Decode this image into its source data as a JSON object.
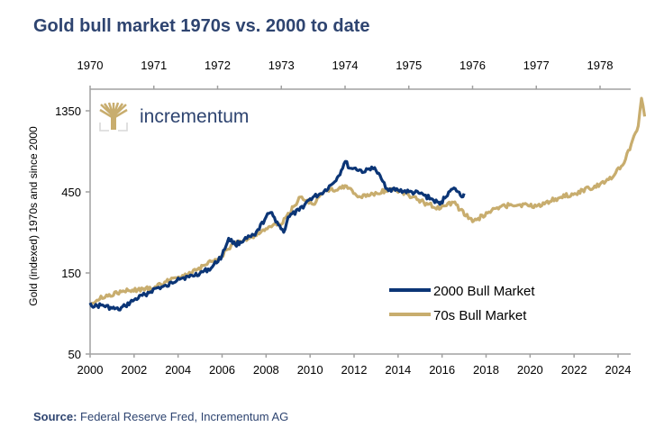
{
  "title": "Gold bull market 1970s vs. 2000 to date",
  "source": {
    "label": "Source:",
    "text": "Federal Reserve Fred, Incrementum AG"
  },
  "logo": {
    "name": "incrementum",
    "icon": "tree-icon"
  },
  "colors": {
    "series_2000": "#0b3576",
    "series_70s": "#c8ad6e",
    "axis": "#a0a0a0",
    "title": "#2e4470"
  },
  "chart_data": {
    "type": "line",
    "title": "Gold bull market 1970s vs. 2000 to date",
    "ylabel": "Gold (indexed) 1970s and since 2000",
    "yscale": "log",
    "ylim": [
      50,
      1600
    ],
    "yticks": [
      50,
      150,
      450,
      1350
    ],
    "ytick_labels": [
      "50",
      "150",
      "450",
      "1350"
    ],
    "x_bottom": {
      "label": "",
      "range": [
        2000,
        2024.6
      ],
      "ticks": [
        2000,
        2002,
        2004,
        2006,
        2008,
        2010,
        2012,
        2014,
        2016,
        2018,
        2020,
        2022,
        2024
      ],
      "tick_labels": [
        "2000",
        "2002",
        "2004",
        "2006",
        "2008",
        "2010",
        "2012",
        "2014",
        "2016",
        "2018",
        "2020",
        "2022",
        "2024"
      ]
    },
    "x_top": {
      "label": "",
      "range": [
        1970,
        1978.7
      ],
      "ticks": [
        1970,
        1971,
        1972,
        1973,
        1974,
        1975,
        1976,
        1977,
        1978
      ],
      "tick_labels": [
        "1970",
        "1971",
        "1972",
        "1973",
        "1974",
        "1975",
        "1976",
        "1977",
        "1978"
      ]
    },
    "legend": {
      "placement": "bottom-right",
      "entries": [
        "2000 Bull Market",
        "70s Bull Market"
      ]
    },
    "grid": false,
    "series": [
      {
        "name": "2000 Bull Market",
        "axis": "bottom",
        "x": [
          2000.0,
          2000.2,
          2000.5,
          2001.0,
          2001.3,
          2001.6,
          2002.0,
          2002.5,
          2003.0,
          2003.5,
          2004.0,
          2004.5,
          2005.0,
          2005.5,
          2006.0,
          2006.3,
          2006.6,
          2007.0,
          2007.5,
          2008.0,
          2008.2,
          2008.5,
          2008.8,
          2009.0,
          2009.5,
          2010.0,
          2010.5,
          2011.0,
          2011.3,
          2011.6,
          2011.8,
          2012.0,
          2012.5,
          2012.8,
          2013.0,
          2013.3,
          2013.5,
          2014.0,
          2014.5,
          2015.0,
          2015.5,
          2015.9,
          2016.3,
          2016.6,
          2016.9,
          2017.0
        ],
        "values": [
          100,
          95,
          97,
          93,
          91,
          96,
          104,
          112,
          122,
          125,
          140,
          142,
          150,
          160,
          190,
          240,
          220,
          235,
          250,
          320,
          340,
          300,
          260,
          320,
          350,
          410,
          440,
          500,
          560,
          680,
          620,
          620,
          590,
          630,
          600,
          520,
          470,
          460,
          450,
          440,
          410,
          380,
          450,
          470,
          420,
          440
        ]
      },
      {
        "name": "70s Bull Market",
        "axis": "top",
        "x": [
          1970.0,
          1970.3,
          1970.6,
          1971.0,
          1971.3,
          1971.6,
          1971.9,
          1972.0,
          1972.3,
          1972.5,
          1972.8,
          1973.0,
          1973.3,
          1973.5,
          1973.7,
          1973.9,
          1974.0,
          1974.2,
          1974.5,
          1974.7,
          1974.9,
          1975.0,
          1975.3,
          1975.5,
          1975.7,
          1976.0,
          1976.3,
          1976.6,
          1977.0,
          1977.3,
          1977.6,
          1978.0,
          1978.2,
          1978.4,
          1978.6,
          1978.65,
          1978.7
        ],
        "values": [
          100,
          112,
          118,
          122,
          140,
          150,
          175,
          180,
          230,
          240,
          280,
          290,
          420,
          380,
          460,
          470,
          490,
          420,
          440,
          470,
          450,
          430,
          380,
          360,
          390,
          300,
          350,
          380,
          370,
          410,
          440,
          500,
          550,
          700,
          1100,
          1600,
          1250
        ]
      }
    ]
  }
}
